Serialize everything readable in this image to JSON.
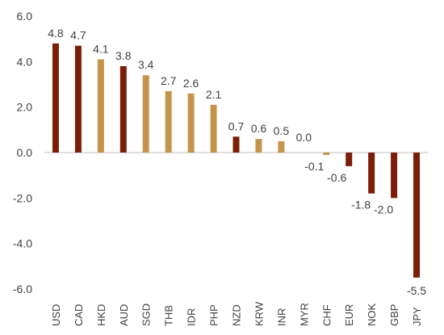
{
  "chart_data": {
    "type": "bar",
    "title": "",
    "xlabel": "",
    "ylabel": "",
    "ylim": [
      -6.0,
      6.0
    ],
    "yticks": [
      "6.0",
      "4.0",
      "2.0",
      "0.0",
      "-2.0",
      "-4.0",
      "-6.0"
    ],
    "ytick_values": [
      6,
      4,
      2,
      0,
      -2,
      -4,
      -6
    ],
    "grid": false,
    "categories": [
      "USD",
      "CAD",
      "HKD",
      "AUD",
      "SGD",
      "THB",
      "IDR",
      "PHP",
      "NZD",
      "KRW",
      "INR",
      "MYR",
      "CHF",
      "EUR",
      "NOK",
      "GBP",
      "JPY"
    ],
    "values": [
      4.8,
      4.7,
      4.1,
      3.8,
      3.4,
      2.7,
      2.6,
      2.1,
      0.7,
      0.6,
      0.5,
      0.0,
      -0.1,
      -0.6,
      -1.8,
      -2.0,
      -5.5
    ],
    "value_labels": [
      "4.8",
      "4.7",
      "4.1",
      "3.8",
      "3.4",
      "2.7",
      "2.6",
      "2.1",
      "0.7",
      "0.6",
      "0.5",
      "0.0",
      "-0.1",
      "-0.6",
      "-1.8",
      "-2.0",
      "-5.5"
    ],
    "bar_colors": [
      "#7b1e08",
      "#7b1e08",
      "#c4944c",
      "#7b1e08",
      "#c4944c",
      "#c4944c",
      "#c4944c",
      "#c4944c",
      "#7b1e08",
      "#c4944c",
      "#c4944c",
      "#c4944c",
      "#c4944c",
      "#7b1e08",
      "#7b1e08",
      "#7b1e08",
      "#7b1e08"
    ],
    "colors": {
      "dark_bar": "#7b1e08",
      "light_bar": "#c4944c",
      "axis": "#bfbfbf",
      "text": "#404040"
    }
  }
}
